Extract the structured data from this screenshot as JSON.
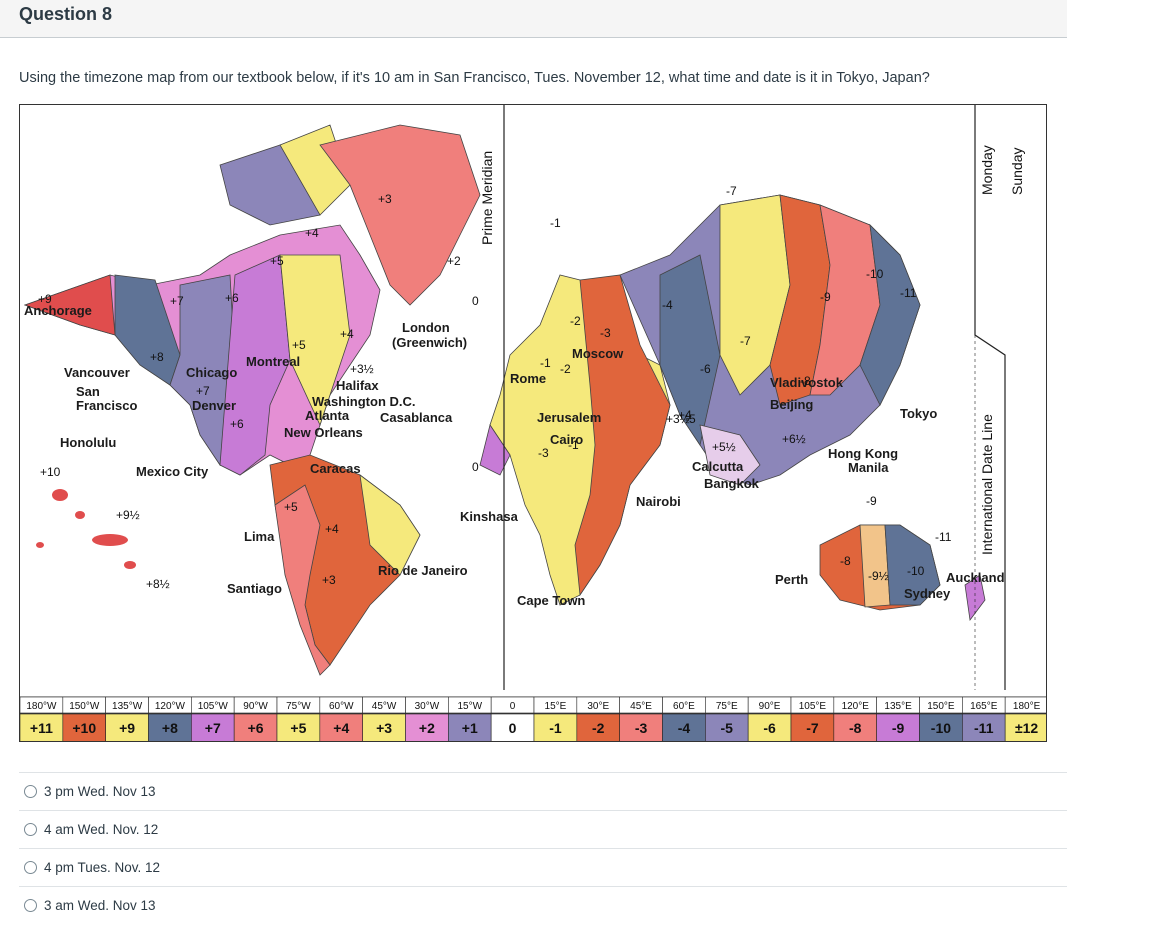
{
  "question": {
    "title": "Question 8",
    "text": "Using the timezone map from our textbook below,  if it's 10 am in San Francisco, Tues. November 12, what time and date is it in Tokyo, Japan?"
  },
  "map": {
    "prime_meridian": "Prime Meridian",
    "date_line": "International Date Line",
    "day_left": "Monday",
    "day_right": "Sunday",
    "cities": [
      "Anchorage",
      "Vancouver",
      "San",
      "Francisco",
      "Chicago",
      "Denver",
      "Montreal",
      "Halifax",
      "Washington D.C.",
      "Atlanta",
      "Casablanca",
      "New Orleans",
      "Honolulu",
      "Mexico City",
      "Caracas",
      "Lima",
      "Santiago",
      "Rio de Janeiro",
      "London",
      "(Greenwich)",
      "Rome",
      "Moscow",
      "Jerusalem",
      "Cairo",
      "Kinshasa",
      "Nairobi",
      "Cape Town",
      "Calcutta",
      "Bangkok",
      "Vladivostok",
      "Beijing",
      "Tokyo",
      "Hong Kong",
      "Manila",
      "Perth",
      "Sydney",
      "Auckland"
    ],
    "zone_offsets": [
      "+9",
      "+7",
      "+6",
      "+5",
      "+4",
      "+3",
      "+2",
      "0",
      "+8",
      "+7",
      "+6",
      "+5",
      "+4",
      "+3½",
      "+10",
      "+9½",
      "+8½",
      "+5",
      "+4",
      "+3",
      "-1",
      "-2",
      "-3",
      "-4",
      "-5",
      "-6",
      "-7",
      "-8",
      "-9",
      "-10",
      "-11",
      "+3½",
      "+4",
      "+5½",
      "+6½",
      "-1",
      "-2",
      "-3",
      "-8",
      "-9½",
      "-10",
      "-11",
      "0",
      "-1",
      "-7",
      "-9"
    ],
    "degrees": [
      "180°W",
      "150°W",
      "135°W",
      "120°W",
      "105°W",
      "90°W",
      "75°W",
      "60°W",
      "45°W",
      "30°W",
      "15°W",
      "0",
      "15°E",
      "30°E",
      "45°E",
      "60°E",
      "75°E",
      "90°E",
      "105°E",
      "120°E",
      "135°E",
      "150°E",
      "165°E",
      "180°E"
    ],
    "bands": [
      "+11",
      "+10",
      "+9",
      "+8",
      "+7",
      "+6",
      "+5",
      "+4",
      "+3",
      "+2",
      "+1",
      "0",
      "-1",
      "-2",
      "-3",
      "-4",
      "-5",
      "-6",
      "-7",
      "-8",
      "-9",
      "-10",
      "-11",
      "±12"
    ]
  },
  "answers": [
    {
      "label": "3 pm Wed. Nov 13"
    },
    {
      "label": "4 am Wed. Nov. 12"
    },
    {
      "label": "4 pm Tues. Nov. 12"
    },
    {
      "label": "3 am Wed. Nov 13"
    }
  ]
}
